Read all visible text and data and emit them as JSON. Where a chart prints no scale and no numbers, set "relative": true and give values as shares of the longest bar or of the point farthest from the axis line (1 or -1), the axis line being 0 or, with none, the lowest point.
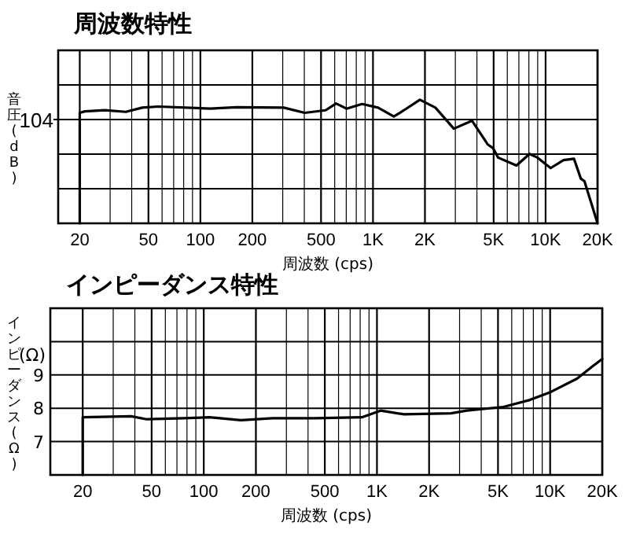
{
  "chart_data": [
    {
      "type": "line",
      "title": "周波数特性",
      "xlabel": "周波数 (cps)",
      "ylabel": "音圧 (dB)",
      "relative": true,
      "log": "x",
      "grid": true,
      "xlim": [
        15,
        20000
      ],
      "xticks": [
        20,
        {
          "value": 30,
          "label": null
        },
        {
          "value": 40,
          "label": null
        },
        50,
        {
          "value": 60,
          "label": null
        },
        {
          "value": 70,
          "label": null
        },
        {
          "value": 80,
          "label": null
        },
        {
          "value": 90,
          "label": null
        },
        100,
        200,
        {
          "value": 300,
          "label": null
        },
        {
          "value": 400,
          "label": null
        },
        500,
        {
          "value": 600,
          "label": null
        },
        {
          "value": 700,
          "label": null
        },
        {
          "value": 800,
          "label": null
        },
        {
          "value": 900,
          "label": null
        },
        {
          "value": 1000,
          "label": "1K"
        },
        {
          "value": 2000,
          "label": "2K"
        },
        {
          "value": 3000,
          "label": null
        },
        {
          "value": 4000,
          "label": null
        },
        {
          "value": 5000,
          "label": "5K"
        },
        {
          "value": 6000,
          "label": null
        },
        {
          "value": 7000,
          "label": null
        },
        {
          "value": 8000,
          "label": null
        },
        {
          "value": 9000,
          "label": null
        },
        {
          "value": 10000,
          "label": "10K"
        },
        {
          "value": 20000,
          "label": "20K"
        }
      ],
      "annotations": [
        "104"
      ],
      "series": [
        {
          "color": "#000000",
          "x": [
            20,
            20,
            21.4,
            28,
            37,
            46,
            57,
            114,
            162,
            304,
            402,
            531,
            611,
            702,
            865,
            1070,
            1320,
            1510,
            1870,
            2300,
            2940,
            3750,
            4620,
            4960,
            5310,
            6780,
            8070,
            8970,
            10700,
            12700,
            14600,
            16000,
            16800,
            20000
          ],
          "values": [
            0,
            0.894,
            0.906,
            0.915,
            0.902,
            0.936,
            0.945,
            0.928,
            0.94,
            0.936,
            0.894,
            0.915,
            0.97,
            0.928,
            0.966,
            0.936,
            0.864,
            0.915,
            1,
            0.936,
            0.766,
            0.83,
            0.638,
            0.609,
            0.532,
            0.468,
            0.562,
            0.532,
            0.447,
            0.511,
            0.523,
            0.362,
            0.34,
            0
          ]
        }
      ]
    },
    {
      "type": "line",
      "title": "インピーダンス特性",
      "xlabel": "周波数 (cps)",
      "ylabel": "インピーダンス (Ω)",
      "log": "x",
      "grid": true,
      "xlim": [
        13,
        20000
      ],
      "xticks": [
        20,
        {
          "value": 30,
          "label": null
        },
        {
          "value": 40,
          "label": null
        },
        50,
        {
          "value": 60,
          "label": null
        },
        {
          "value": 70,
          "label": null
        },
        {
          "value": 80,
          "label": null
        },
        {
          "value": 90,
          "label": null
        },
        100,
        200,
        {
          "value": 300,
          "label": null
        },
        {
          "value": 400,
          "label": null
        },
        500,
        {
          "value": 600,
          "label": null
        },
        {
          "value": 700,
          "label": null
        },
        {
          "value": 800,
          "label": null
        },
        {
          "value": 900,
          "label": null
        },
        {
          "value": 1000,
          "label": "1K"
        },
        {
          "value": 2000,
          "label": "2K"
        },
        {
          "value": 3000,
          "label": null
        },
        {
          "value": 4000,
          "label": null
        },
        {
          "value": 5000,
          "label": "5K"
        },
        {
          "value": 6000,
          "label": null
        },
        {
          "value": 7000,
          "label": null
        },
        {
          "value": 8000,
          "label": null
        },
        {
          "value": 9000,
          "label": null
        },
        {
          "value": 10000,
          "label": "10K"
        },
        {
          "value": 20000,
          "label": "20K"
        }
      ],
      "ylim": [
        6,
        11
      ],
      "yticks": [
        7,
        8,
        9,
        {
          "value": 10,
          "label": null
        },
        {
          "value": 11,
          "label": null
        }
      ],
      "annotations": [
        "(Ω)"
      ],
      "series": [
        {
          "color": "#000000",
          "x": [
            20,
            20,
            38,
            47,
            76,
            108,
            164,
            250,
            437,
            818,
            1050,
            1430,
            2680,
            3300,
            5380,
            7640,
            10100,
            14300,
            17600,
            20000
          ],
          "values": [
            6,
            7.73,
            7.76,
            7.67,
            7.7,
            7.73,
            7.64,
            7.7,
            7.7,
            7.73,
            7.93,
            7.82,
            7.85,
            7.93,
            8.04,
            8.25,
            8.49,
            8.89,
            9.26,
            9.48
          ]
        }
      ]
    }
  ]
}
